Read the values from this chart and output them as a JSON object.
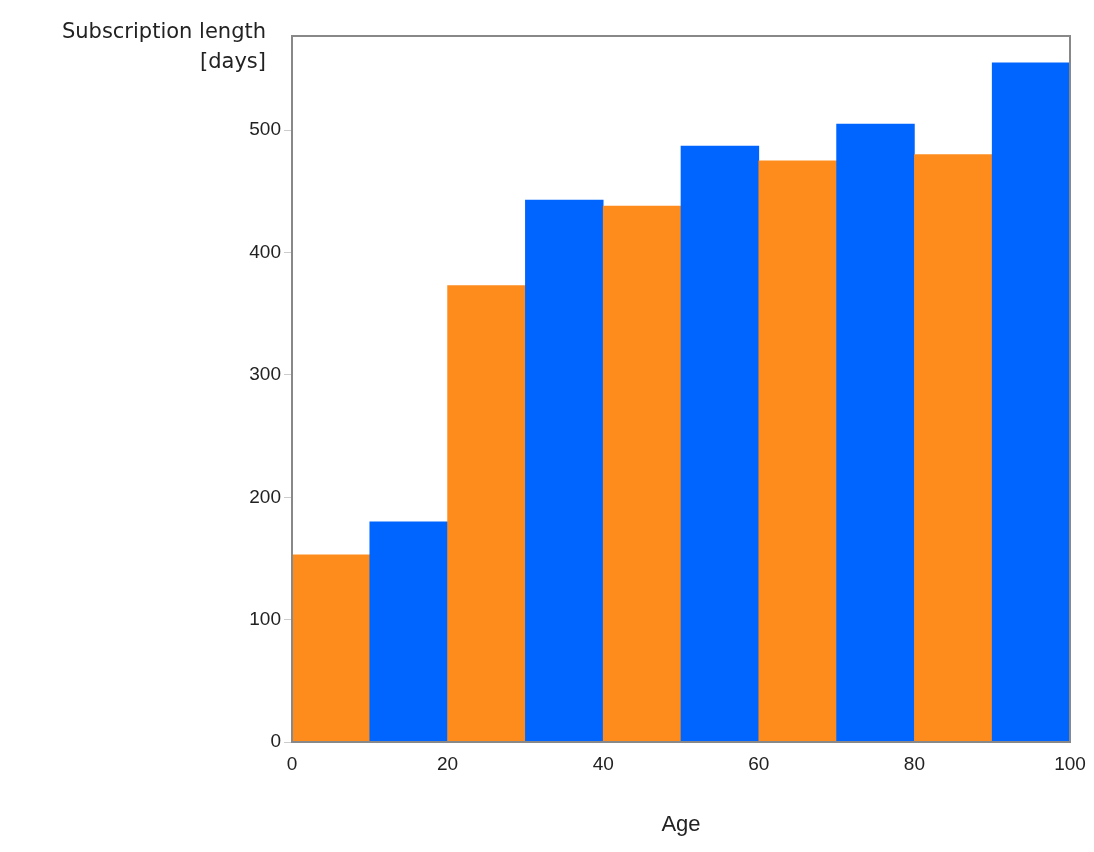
{
  "chart_data": {
    "type": "histogram",
    "xlabel": "Age",
    "ylabel": "Subscription length [days]",
    "bins": [
      0,
      10,
      20,
      30,
      40,
      50,
      60,
      70,
      80,
      90,
      100
    ],
    "values": [
      153,
      180,
      373,
      443,
      438,
      487,
      475,
      505,
      480,
      555
    ],
    "colors": [
      "#fd8c1c",
      "#0064fe",
      "#fd8c1c",
      "#0064fe",
      "#fd8c1c",
      "#0064fe",
      "#fd8c1c",
      "#0064fe",
      "#fd8c1c",
      "#0064fe"
    ],
    "xlim": [
      0,
      100
    ],
    "xticks": [
      0,
      20,
      40,
      60,
      80,
      100
    ],
    "ylim": [
      0,
      577
    ],
    "yticks": [
      0,
      100,
      200,
      300,
      400,
      500
    ],
    "grid": false,
    "legend": false
  }
}
